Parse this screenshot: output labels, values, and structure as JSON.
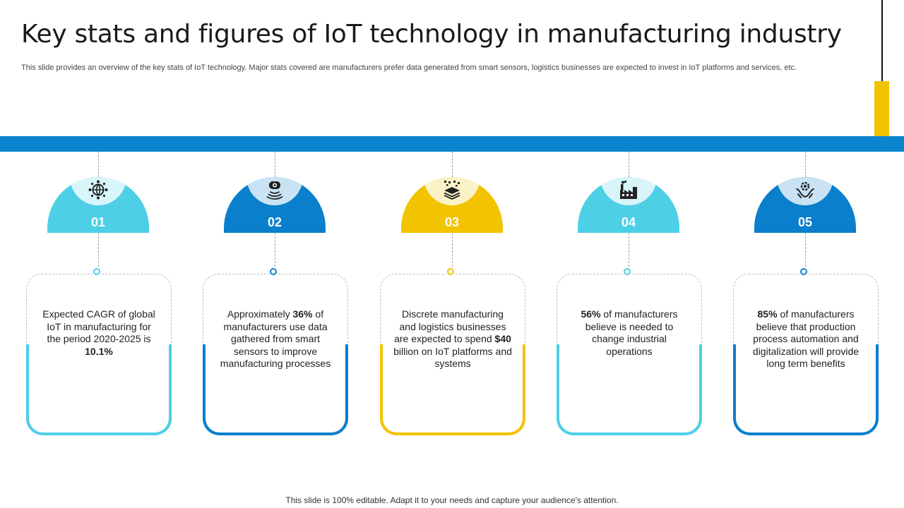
{
  "title": "Key stats and figures of IoT technology in manufacturing industry",
  "subtitle": "This slide provides an overview of the key stats of IoT technology. Major stats covered are manufacturers prefer data generated from smart sensors, logistics businesses are expected to invest in IoT platforms and services, etc.",
  "footer": "This slide is 100% editable. Adapt it to your needs and capture your audience's attention.",
  "colors": {
    "band": "#0a84cf",
    "accent_yellow": "#f2c300",
    "light_blue": "#4dcfe6",
    "dark_blue": "#0a7fcc"
  },
  "items": [
    {
      "num": "01",
      "icon": "globe-network-icon",
      "color": "#4dcfe6",
      "text_before": "Expected CAGR of global IoT in manufacturing for the period 2020-2025 is ",
      "highlight": "10.1%",
      "text_after": ""
    },
    {
      "num": "02",
      "icon": "smart-sensor-icon",
      "color": "#0a7fcc",
      "text_before": "Approximately ",
      "highlight": "36%",
      "text_after": " of manufacturers use data gathered from smart sensors to improve manufacturing processes"
    },
    {
      "num": "03",
      "icon": "layers-data-icon",
      "color": "#f2c300",
      "text_before": "Discrete manufacturing and logistics businesses are expected to spend ",
      "highlight": "$40",
      "text_after": " billion on IoT platforms and systems"
    },
    {
      "num": "04",
      "icon": "factory-icon",
      "color": "#4dcfe6",
      "text_before": "",
      "highlight": "56%",
      "text_after": " of manufacturers believe is needed to change industrial operations"
    },
    {
      "num": "05",
      "icon": "hands-gear-icon",
      "color": "#0a7fcc",
      "text_before": "",
      "highlight": "85%",
      "text_after": " of manufacturers believe that production process automation and digitalization will provide long term benefits"
    }
  ]
}
